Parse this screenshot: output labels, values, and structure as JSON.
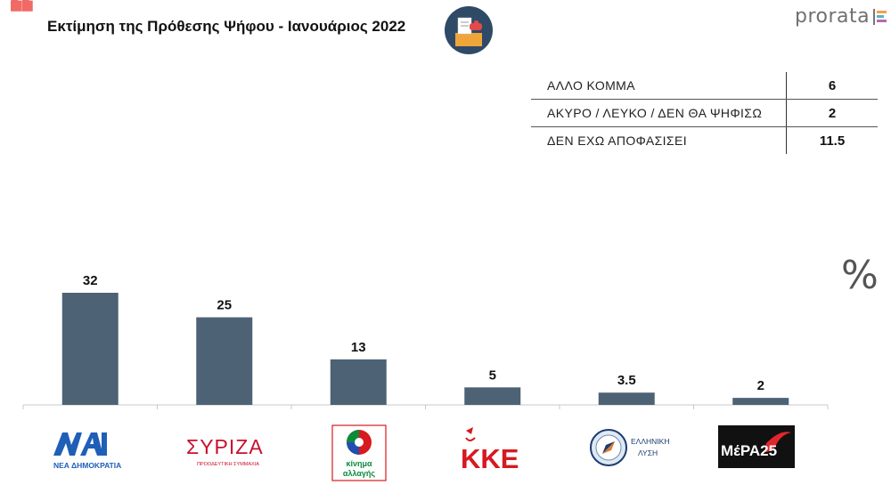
{
  "header": {
    "quote_mark": "❝",
    "title": "Εκτίμηση της Πρόθεσης Ψήφου - Ιανουάριος 2022",
    "brand": "prorata",
    "icon": "ballot-box-icon"
  },
  "side_table": {
    "rows": [
      {
        "label": "ΑΛΛΟ ΚΟΜΜΑ",
        "value": "6"
      },
      {
        "label": "ΑΚΥΡΟ / ΛΕΥΚΟ / ΔΕΝ ΘΑ ΨΗΦΙΣΩ",
        "value": "2"
      },
      {
        "label": "ΔΕΝ ΕΧΩ ΑΠΟΦΑΣΙΣΕΙ",
        "value": "11.5"
      }
    ]
  },
  "unit_symbol": "%",
  "logos": {
    "nd": {
      "text": "ΝΕΑ ΔΗΜΟΚΡΑΤΙΑ",
      "color": "#1f5fb7"
    },
    "syriza": {
      "text": "ΣΥΡΙΖΑ",
      "sub": "ΠΡΟΟΔΕΥΤΙΚΗ ΣΥΜΜΑΧΙΑ",
      "color": "#c8102e"
    },
    "kinal": {
      "text1": "κίνημα",
      "text2": "αλλαγής",
      "color": "#0c8a3c"
    },
    "kke": {
      "text": "ΚΚΕ",
      "color": "#d71920"
    },
    "elliniki": {
      "text1": "ΕΛΛΗΝΙΚΗ",
      "text2": "ΛΥΣΗ",
      "color": "#1e3c6e"
    },
    "mera25": {
      "text": "ΜέΡΑ25",
      "color": "#111111"
    }
  },
  "chart_data": {
    "type": "bar",
    "categories": [
      "ΝΕΑ ΔΗΜΟΚΡΑΤΙΑ",
      "ΣΥΡΙΖΑ",
      "ΚΙΝΑΛ",
      "ΚΚΕ",
      "ΕΛΛΗΝΙΚΗ ΛΥΣΗ",
      "ΜέΡΑ25"
    ],
    "values": [
      32,
      25,
      13,
      5,
      3.5,
      2
    ],
    "value_labels": [
      "32",
      "25",
      "13",
      "5",
      "3.5",
      "2"
    ],
    "bar_color": "#4e6275",
    "ylim": [
      0,
      32
    ],
    "grid": false,
    "legend": "none"
  }
}
